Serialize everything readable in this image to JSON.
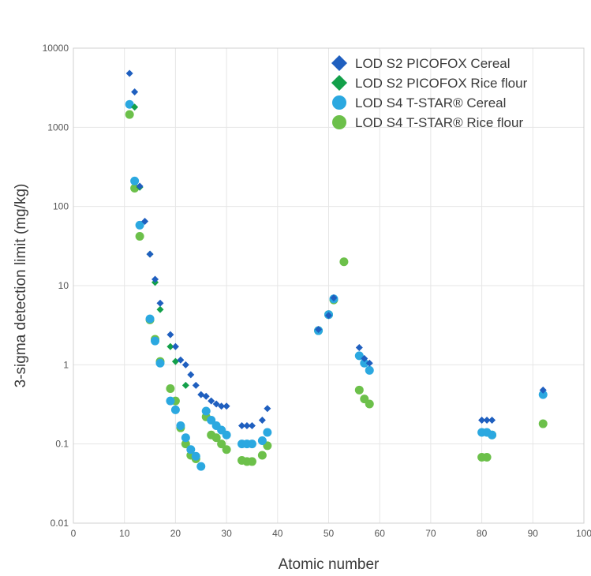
{
  "chart_data": {
    "type": "scatter",
    "title": "",
    "xlabel": "Atomic number",
    "ylabel": "3-sigma detection limit (mg/kg)",
    "xlim": [
      0,
      100
    ],
    "ylim": [
      0.01,
      10000
    ],
    "yscale": "log",
    "grid": true,
    "legend_position": "top-right",
    "x_ticks": [
      "0",
      "10",
      "20",
      "30",
      "40",
      "50",
      "60",
      "70",
      "80",
      "90",
      "100"
    ],
    "y_ticks": [
      "10000",
      "1000",
      "100",
      "10",
      "1",
      "0.1",
      "0.01"
    ],
    "series": [
      {
        "name": "LOD S2 PICOFOX Cereal",
        "marker": "diamond",
        "color": "#1f5fbf",
        "points": [
          [
            11,
            4800
          ],
          [
            12,
            2800
          ],
          [
            13,
            180
          ],
          [
            14,
            65
          ],
          [
            15,
            25
          ],
          [
            16,
            12
          ],
          [
            17,
            6
          ],
          [
            19,
            2.4
          ],
          [
            20,
            1.7
          ],
          [
            21,
            1.15
          ],
          [
            22,
            1.0
          ],
          [
            23,
            0.75
          ],
          [
            24,
            0.55
          ],
          [
            25,
            0.42
          ],
          [
            26,
            0.4
          ],
          [
            27,
            0.35
          ],
          [
            28,
            0.32
          ],
          [
            29,
            0.3
          ],
          [
            30,
            0.3
          ],
          [
            33,
            0.17
          ],
          [
            34,
            0.17
          ],
          [
            35,
            0.17
          ],
          [
            37,
            0.2
          ],
          [
            38,
            0.28
          ],
          [
            48,
            2.8
          ],
          [
            50,
            4.2
          ],
          [
            51,
            7
          ],
          [
            56,
            1.65
          ],
          [
            57,
            1.2
          ],
          [
            58,
            1.05
          ],
          [
            80,
            0.2
          ],
          [
            81,
            0.2
          ],
          [
            82,
            0.2
          ],
          [
            92,
            0.48
          ]
        ]
      },
      {
        "name": "LOD S2 PICOFOX Rice flour",
        "marker": "diamond",
        "color": "#13a04a",
        "points": [
          [
            12,
            1800
          ],
          [
            13,
            175
          ],
          [
            15,
            25
          ],
          [
            16,
            11
          ],
          [
            17,
            5
          ],
          [
            19,
            1.7
          ],
          [
            20,
            1.1
          ],
          [
            22,
            0.55
          ]
        ]
      },
      {
        "name": "LOD S4 T-STAR® Cereal",
        "marker": "circle",
        "color": "#2ba8e0",
        "points": [
          [
            11,
            1950
          ],
          [
            12,
            210
          ],
          [
            13,
            58
          ],
          [
            15,
            3.8
          ],
          [
            16,
            2
          ],
          [
            17,
            1.05
          ],
          [
            19,
            0.35
          ],
          [
            20,
            0.27
          ],
          [
            21,
            0.17
          ],
          [
            22,
            0.12
          ],
          [
            23,
            0.085
          ],
          [
            24,
            0.07
          ],
          [
            25,
            0.052
          ],
          [
            26,
            0.26
          ],
          [
            27,
            0.2
          ],
          [
            28,
            0.17
          ],
          [
            29,
            0.15
          ],
          [
            30,
            0.13
          ],
          [
            33,
            0.1
          ],
          [
            34,
            0.1
          ],
          [
            35,
            0.1
          ],
          [
            37,
            0.11
          ],
          [
            38,
            0.14
          ],
          [
            48,
            2.7
          ],
          [
            50,
            4.3
          ],
          [
            51,
            6.8
          ],
          [
            56,
            1.3
          ],
          [
            57,
            1.05
          ],
          [
            58,
            0.85
          ],
          [
            80,
            0.14
          ],
          [
            81,
            0.14
          ],
          [
            82,
            0.13
          ],
          [
            92,
            0.42
          ]
        ]
      },
      {
        "name": "LOD S4 T-STAR® Rice flour",
        "marker": "circle",
        "color": "#6cc04a",
        "points": [
          [
            11,
            1450
          ],
          [
            12,
            170
          ],
          [
            13,
            42
          ],
          [
            15,
            3.7
          ],
          [
            16,
            2.1
          ],
          [
            17,
            1.1
          ],
          [
            19,
            0.5
          ],
          [
            20,
            0.35
          ],
          [
            21,
            0.16
          ],
          [
            22,
            0.1
          ],
          [
            23,
            0.072
          ],
          [
            24,
            0.065
          ],
          [
            26,
            0.22
          ],
          [
            27,
            0.13
          ],
          [
            28,
            0.12
          ],
          [
            29,
            0.1
          ],
          [
            30,
            0.085
          ],
          [
            33,
            0.062
          ],
          [
            34,
            0.06
          ],
          [
            35,
            0.06
          ],
          [
            37,
            0.072
          ],
          [
            38,
            0.095
          ],
          [
            48,
            2.7
          ],
          [
            50,
            4.3
          ],
          [
            51,
            6.6
          ],
          [
            53,
            20
          ],
          [
            56,
            0.48
          ],
          [
            57,
            0.37
          ],
          [
            58,
            0.32
          ],
          [
            80,
            0.068
          ],
          [
            81,
            0.068
          ],
          [
            82,
            0.13
          ],
          [
            92,
            0.18
          ]
        ]
      }
    ]
  }
}
